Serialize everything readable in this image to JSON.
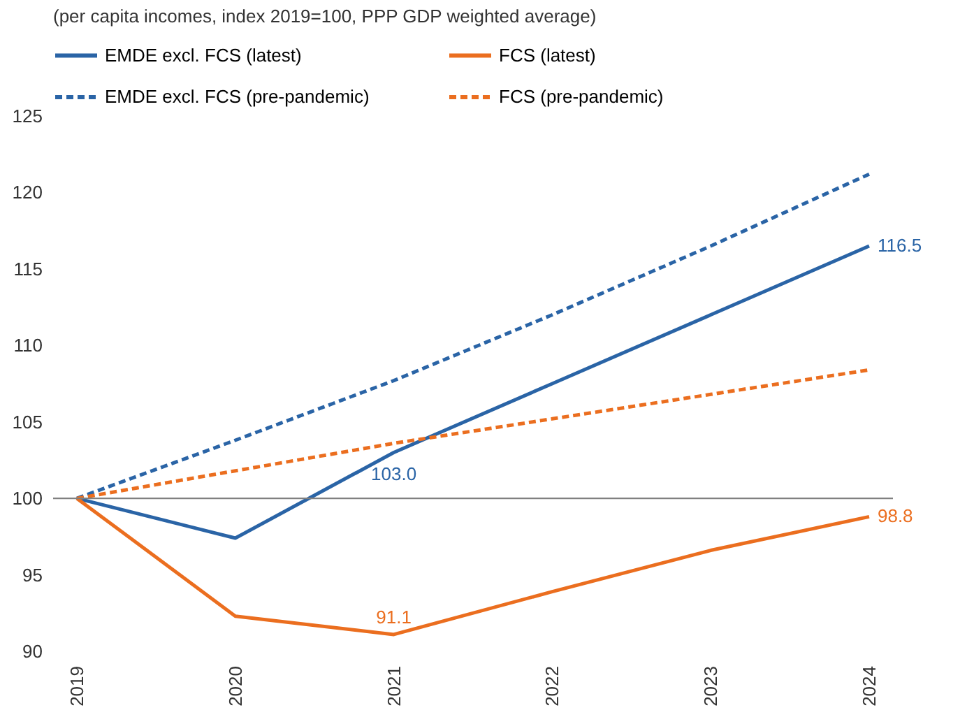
{
  "chart_data": {
    "type": "line",
    "title": "(per capita incomes, index 2019=100, PPP GDP weighted average)",
    "categories": [
      "2019",
      "2020",
      "2021",
      "2022",
      "2023",
      "2024"
    ],
    "series": [
      {
        "name": "EMDE excl. FCS (latest)",
        "color": "#2a64a6",
        "line_style": "solid",
        "values": [
          100,
          97.4,
          103.0,
          107.5,
          112.0,
          116.5
        ],
        "value_labels": [
          null,
          null,
          "103.0",
          null,
          null,
          "116.5"
        ]
      },
      {
        "name": "FCS (latest)",
        "color": "#eb6e1f",
        "line_style": "solid",
        "values": [
          100,
          92.3,
          91.1,
          93.9,
          96.6,
          98.8
        ],
        "value_labels": [
          null,
          null,
          "91.1",
          null,
          null,
          "98.8"
        ]
      },
      {
        "name": "EMDE excl. FCS (pre-pandemic)",
        "color": "#2a64a6",
        "line_style": "dashed",
        "values": [
          100,
          103.8,
          107.7,
          112.0,
          116.5,
          121.2
        ]
      },
      {
        "name": "FCS (pre-pandemic)",
        "color": "#eb6e1f",
        "line_style": "dashed",
        "values": [
          100,
          101.8,
          103.6,
          105.2,
          106.8,
          108.4
        ]
      }
    ],
    "ylim": [
      90,
      125
    ],
    "yticks": [
      90,
      95,
      100,
      105,
      110,
      115,
      120,
      125
    ],
    "ref_lines": [
      {
        "axis": "y",
        "value": 100,
        "color": "#808080"
      }
    ],
    "legend": "top",
    "marker": "none",
    "grid": false
  }
}
